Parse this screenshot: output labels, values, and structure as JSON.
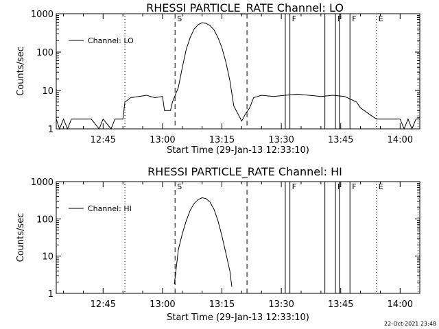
{
  "footer": {
    "timestamp": "22-Oct-2021 23:48"
  },
  "colors": {
    "background": "#ffffff",
    "foreground": "#000000"
  },
  "chart_data": [
    {
      "type": "line",
      "title": "RHESSI PARTICLE_RATE Channel: LO",
      "xlabel": "Start Time (29-Jan-13 12:33:10)",
      "ylabel": "Counts/sec",
      "yscale": "log",
      "ylim": [
        1,
        1000
      ],
      "xlim_minutes_since_start": [
        0,
        91.8
      ],
      "x_tick_labels": [
        "12:45",
        "13:00",
        "13:15",
        "13:30",
        "13:45",
        "14:00"
      ],
      "y_tick_labels": [
        "1",
        "10",
        "100",
        "1000"
      ],
      "legend": {
        "label": "Channel: LO",
        "position": "top-left"
      },
      "event_markers": [
        "S",
        "F",
        "F",
        "F",
        "E"
      ],
      "series": [
        {
          "name": "Channel: LO",
          "points": [
            [
              "12:33:10",
              1.8
            ],
            [
              "12:34:00",
              1.0
            ],
            [
              "12:35:00",
              1.8
            ],
            [
              "12:36:00",
              1.0
            ],
            [
              "12:37:00",
              1.8
            ],
            [
              "12:38:00",
              1.8
            ],
            [
              "12:40:00",
              1.8
            ],
            [
              "12:42:00",
              1.8
            ],
            [
              "12:44:00",
              1.0
            ],
            [
              "12:45:00",
              1.8
            ],
            [
              "12:47:00",
              1.0
            ],
            [
              "12:48:00",
              1.8
            ],
            [
              "12:50:00",
              1.8
            ],
            [
              "12:50:30",
              5.0
            ],
            [
              "12:52:00",
              6.5
            ],
            [
              "12:54:00",
              7.0
            ],
            [
              "12:56:00",
              7.5
            ],
            [
              "12:58:00",
              6.5
            ],
            [
              "13:00:00",
              7.0
            ],
            [
              "13:00:30",
              3.0
            ],
            [
              "13:02:00",
              3.0
            ],
            [
              "13:02:30",
              5.0
            ],
            [
              "13:04:00",
              12
            ],
            [
              "13:05:00",
              40
            ],
            [
              "13:06:00",
              120
            ],
            [
              "13:07:00",
              240
            ],
            [
              "13:08:00",
              400
            ],
            [
              "13:09:00",
              520
            ],
            [
              "13:10:00",
              580
            ],
            [
              "13:11:00",
              560
            ],
            [
              "13:12:00",
              490
            ],
            [
              "13:13:00",
              380
            ],
            [
              "13:14:00",
              240
            ],
            [
              "13:15:00",
              130
            ],
            [
              "13:16:00",
              55
            ],
            [
              "13:17:00",
              18
            ],
            [
              "13:18:00",
              4.0
            ],
            [
              "13:19:00",
              2.5
            ],
            [
              "13:20:00",
              1.6
            ],
            [
              "13:21:00",
              2.5
            ],
            [
              "13:22:00",
              3.5
            ],
            [
              "13:23:00",
              6.5
            ],
            [
              "13:25:00",
              7.5
            ],
            [
              "13:28:00",
              7.0
            ],
            [
              "13:31:00",
              7.5
            ],
            [
              "13:34:00",
              8.0
            ],
            [
              "13:37:00",
              7.5
            ],
            [
              "13:40:00",
              7.0
            ],
            [
              "13:43:00",
              7.5
            ],
            [
              "13:46:00",
              7.0
            ],
            [
              "13:49:00",
              5.0
            ],
            [
              "13:50:00",
              3.5
            ],
            [
              "13:52:00",
              2.5
            ],
            [
              "13:54:00",
              1.8
            ],
            [
              "13:57:00",
              1.8
            ],
            [
              "14:00:00",
              1.8
            ],
            [
              "14:01:00",
              1.0
            ],
            [
              "14:02:00",
              1.8
            ],
            [
              "14:03:00",
              1.0
            ],
            [
              "14:04:00",
              1.8
            ],
            [
              "14:05:00",
              1.8
            ]
          ]
        }
      ]
    },
    {
      "type": "line",
      "title": "RHESSI PARTICLE_RATE Channel: HI",
      "xlabel": "Start Time (29-Jan-13 12:33:10)",
      "ylabel": "Counts/sec",
      "yscale": "log",
      "ylim": [
        1,
        1000
      ],
      "xlim_minutes_since_start": [
        0,
        91.8
      ],
      "x_tick_labels": [
        "12:45",
        "13:00",
        "13:15",
        "13:30",
        "13:45",
        "14:00"
      ],
      "y_tick_labels": [
        "1",
        "10",
        "100",
        "1000"
      ],
      "legend": {
        "label": "Channel: HI",
        "position": "top-left"
      },
      "event_markers": [
        "S",
        "F",
        "F",
        "F",
        "E"
      ],
      "series": [
        {
          "name": "Channel: HI",
          "points": [
            [
              "13:03:00",
              1.8
            ],
            [
              "13:03:30",
              5.0
            ],
            [
              "13:04:00",
              15
            ],
            [
              "13:05:00",
              40
            ],
            [
              "13:06:00",
              90
            ],
            [
              "13:07:00",
              170
            ],
            [
              "13:08:00",
              260
            ],
            [
              "13:09:00",
              330
            ],
            [
              "13:10:00",
              370
            ],
            [
              "13:11:00",
              350
            ],
            [
              "13:12:00",
              280
            ],
            [
              "13:13:00",
              180
            ],
            [
              "13:14:00",
              90
            ],
            [
              "13:15:00",
              35
            ],
            [
              "13:16:00",
              12
            ],
            [
              "13:17:00",
              4.0
            ],
            [
              "13:17:30",
              1.5
            ]
          ]
        }
      ]
    }
  ]
}
